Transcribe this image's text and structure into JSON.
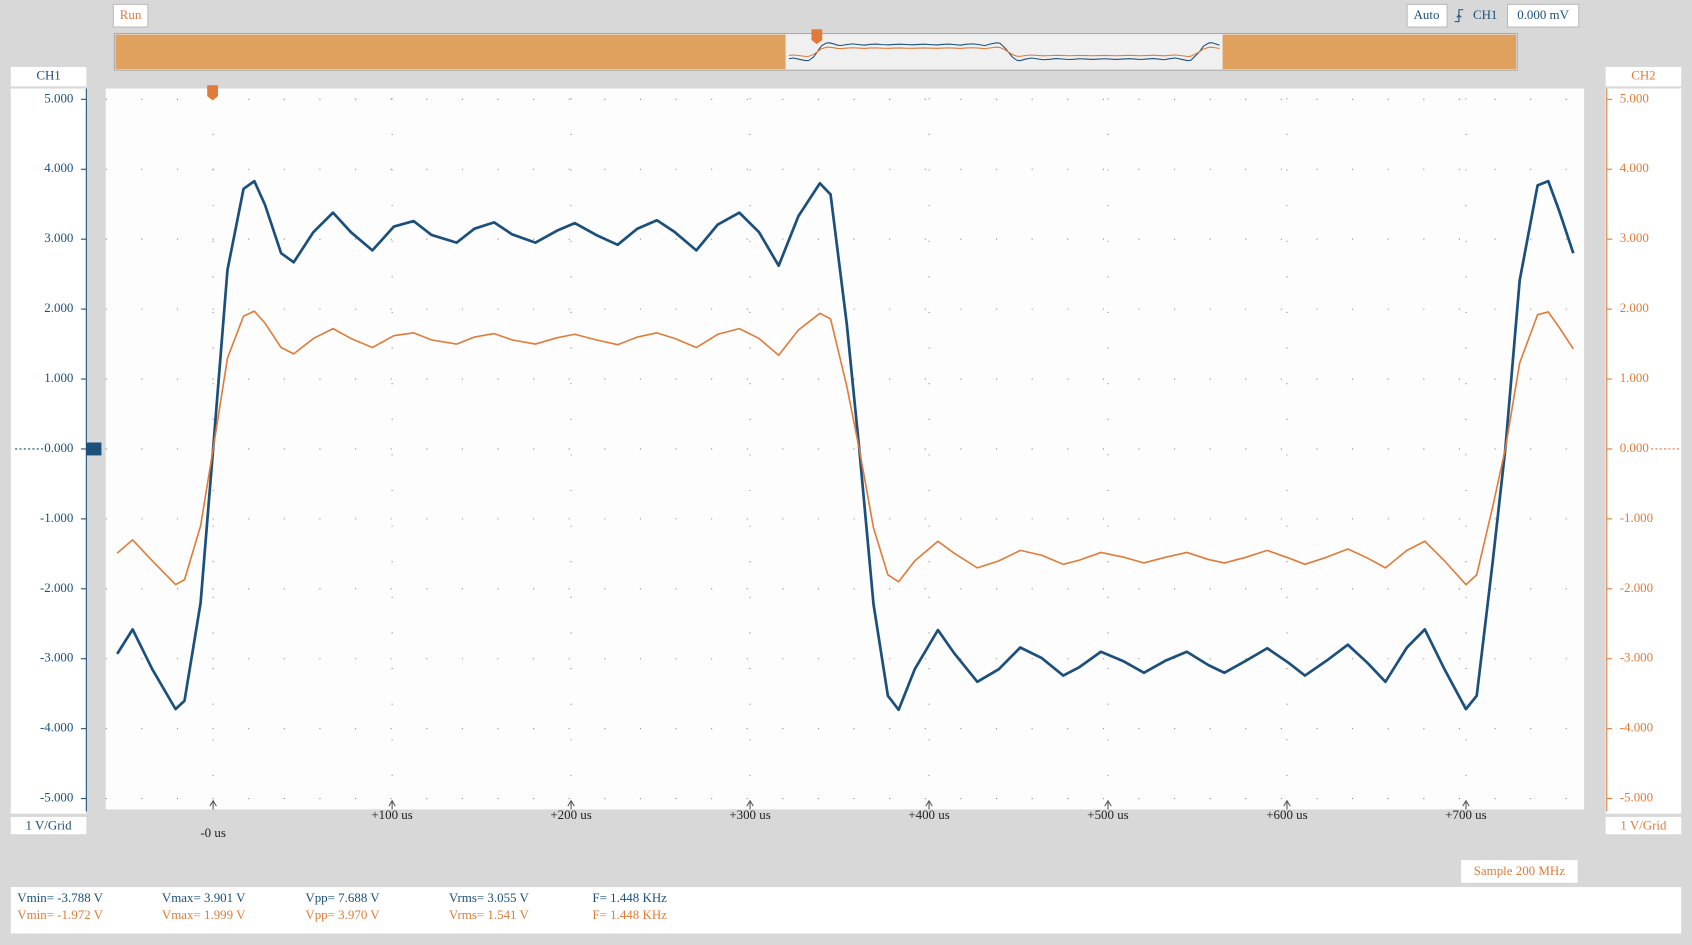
{
  "toolbar": {
    "status": "Run",
    "mode": "Auto",
    "trigger_source": "CH1",
    "trigger_level": "0.000 mV"
  },
  "axis_scales": [
    "1 V/Grid",
    "1 V/Grid"
  ],
  "sample_rate": "Sample 200 MHz",
  "measurements": [
    [
      "Vmin= -3.788 V",
      "Vmax= 3.901 V",
      "Vpp= 7.688 V",
      "Vrms= 3.055 V",
      "F= 1.448 KHz"
    ],
    [
      "Vmin= -1.972 V",
      "Vmax= 1.999 V",
      "Vpp= 3.970 V",
      "Vrms= 1.541 V",
      "F= 1.448 KHz"
    ]
  ],
  "chart_data": {
    "type": "line",
    "x": [
      -53.6,
      -45,
      -34,
      -21,
      -16,
      -7,
      0,
      8,
      17,
      23,
      29,
      38,
      45,
      56,
      67,
      77,
      89,
      101,
      112,
      122,
      136,
      146,
      157,
      167,
      180,
      192,
      202,
      214,
      226,
      237,
      248,
      258,
      270,
      282,
      294,
      305,
      316,
      327,
      339,
      345,
      354,
      361,
      369,
      377,
      383,
      392,
      405,
      414,
      427,
      439,
      451,
      463,
      475,
      484,
      496,
      509,
      520,
      532,
      544,
      556,
      565,
      577,
      589,
      601,
      610,
      622,
      634,
      645,
      655,
      667,
      677,
      688,
      700,
      706,
      715,
      722,
      730,
      740,
      746,
      752,
      760
    ],
    "series": [
      {
        "name": "CH1",
        "color": "#1b4f7c",
        "values": [
          -2.93,
          -2.58,
          -3.15,
          -3.72,
          -3.6,
          -2.2,
          0,
          2.56,
          3.72,
          3.83,
          3.49,
          2.8,
          2.67,
          3.1,
          3.38,
          3.1,
          2.84,
          3.18,
          3.26,
          3.06,
          2.95,
          3.15,
          3.24,
          3.07,
          2.95,
          3.12,
          3.23,
          3.06,
          2.92,
          3.15,
          3.27,
          3.1,
          2.84,
          3.21,
          3.38,
          3.1,
          2.62,
          3.33,
          3.8,
          3.64,
          1.79,
          0,
          -2.22,
          -3.53,
          -3.73,
          -3.15,
          -2.59,
          -2.92,
          -3.33,
          -3.15,
          -2.84,
          -2.99,
          -3.24,
          -3.12,
          -2.9,
          -3.04,
          -3.2,
          -3.03,
          -2.9,
          -3.09,
          -3.2,
          -3.03,
          -2.85,
          -3.06,
          -3.24,
          -3.03,
          -2.8,
          -3.06,
          -3.33,
          -2.84,
          -2.58,
          -3.15,
          -3.72,
          -3.53,
          -1.6,
          0,
          2.41,
          3.77,
          3.83,
          3.41,
          2.8
        ]
      },
      {
        "name": "CH2",
        "color": "#e07b39",
        "axis": "y2",
        "values": [
          -1.49,
          -1.3,
          -1.6,
          -1.94,
          -1.87,
          -1.1,
          0,
          1.3,
          1.9,
          1.97,
          1.8,
          1.45,
          1.36,
          1.58,
          1.72,
          1.58,
          1.45,
          1.62,
          1.66,
          1.56,
          1.5,
          1.6,
          1.65,
          1.56,
          1.5,
          1.59,
          1.64,
          1.56,
          1.49,
          1.6,
          1.66,
          1.58,
          1.45,
          1.64,
          1.72,
          1.58,
          1.34,
          1.7,
          1.94,
          1.86,
          0.9,
          0,
          -1.13,
          -1.8,
          -1.9,
          -1.6,
          -1.32,
          -1.49,
          -1.7,
          -1.6,
          -1.45,
          -1.52,
          -1.65,
          -1.59,
          -1.48,
          -1.55,
          -1.63,
          -1.55,
          -1.48,
          -1.58,
          -1.63,
          -1.55,
          -1.45,
          -1.56,
          -1.65,
          -1.55,
          -1.43,
          -1.56,
          -1.7,
          -1.45,
          -1.32,
          -1.6,
          -1.94,
          -1.8,
          -0.82,
          0,
          1.23,
          1.92,
          1.96,
          1.74,
          1.43
        ]
      }
    ],
    "xlim": [
      -60,
      766
    ],
    "xticks": [
      {
        "value": 0,
        "label": "-0 us"
      },
      {
        "value": 100,
        "label": "+100 us"
      },
      {
        "value": 200,
        "label": "+200 us"
      },
      {
        "value": 300,
        "label": "+300 us"
      },
      {
        "value": 400,
        "label": "+400 us"
      },
      {
        "value": 500,
        "label": "+500 us"
      },
      {
        "value": 600,
        "label": "+600 us"
      },
      {
        "value": 700,
        "label": "+700 us"
      }
    ],
    "ylim": [
      -5,
      5
    ],
    "yticks": [
      {
        "value": 5,
        "label": "5.000"
      },
      {
        "value": 4,
        "label": "4.000"
      },
      {
        "value": 3,
        "label": "3.000"
      },
      {
        "value": 2,
        "label": "2.000"
      },
      {
        "value": 1,
        "label": "1.000"
      },
      {
        "value": 0,
        "label": "0.000"
      },
      {
        "value": -1,
        "label": "-1.000"
      },
      {
        "value": -2,
        "label": "-2.000"
      },
      {
        "value": -3,
        "label": "-3.000"
      },
      {
        "value": -4,
        "label": "-4.000"
      },
      {
        "value": -5,
        "label": "-5.000"
      }
    ],
    "y2lim": [
      -5,
      5
    ],
    "y2ticks": [
      {
        "value": 5,
        "label": "5.000"
      },
      {
        "value": 4,
        "label": "4.000"
      },
      {
        "value": 3,
        "label": "3.000"
      },
      {
        "value": 2,
        "label": "2.000"
      },
      {
        "value": 1,
        "label": "1.000"
      },
      {
        "value": 0,
        "label": "0.000"
      },
      {
        "value": -1,
        "label": "-1.000"
      },
      {
        "value": -2,
        "label": "-2.000"
      },
      {
        "value": -3,
        "label": "-3.000"
      },
      {
        "value": -4,
        "label": "-4.000"
      },
      {
        "value": -5,
        "label": "-5.000"
      }
    ],
    "grid": true
  }
}
